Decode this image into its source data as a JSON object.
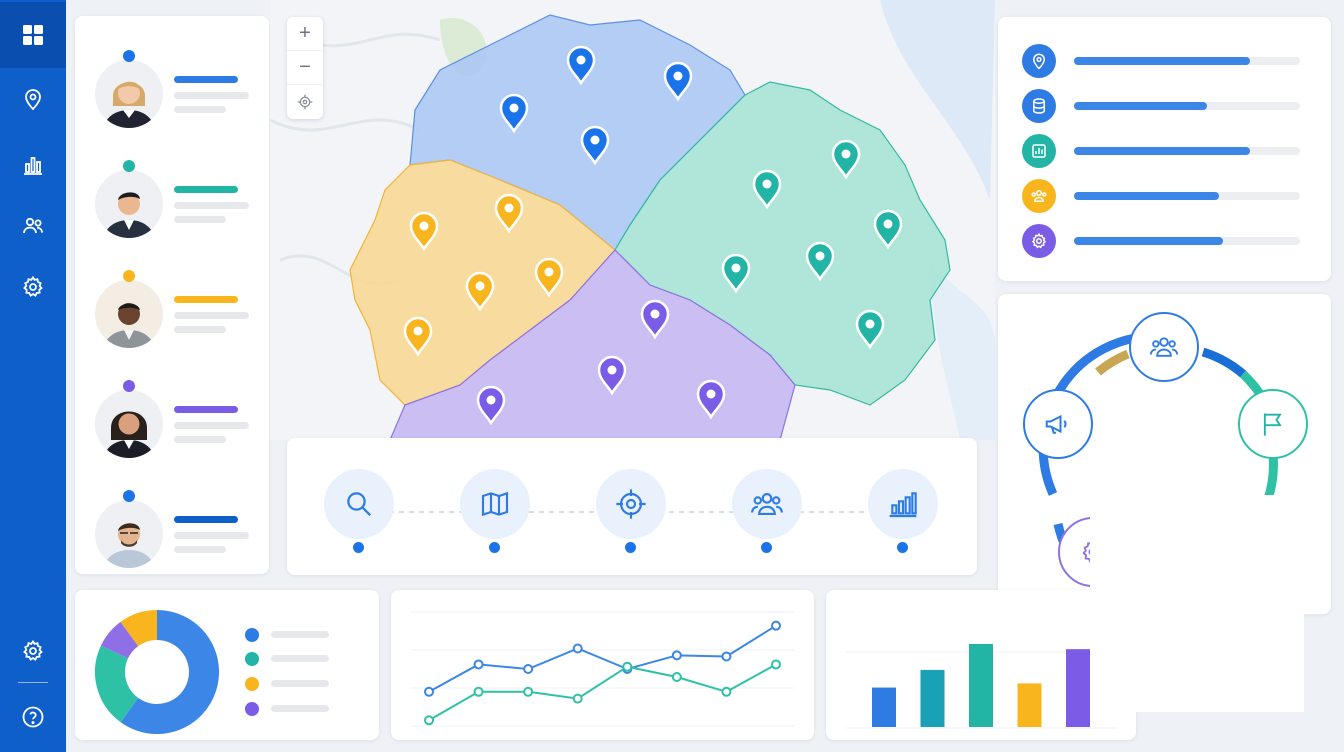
{
  "colors": {
    "sidebar": "#0f5fcb",
    "blue": "#1a73e8",
    "teal": "#22b5a5",
    "amber": "#f9b51e",
    "purple": "#7a5ce6",
    "blue_region": "#a9c6f4",
    "green_region": "#a3e3d3",
    "amber_region": "#f8d894",
    "purple_region": "#c7b8f2"
  },
  "sidebar": {
    "items": [
      {
        "icon": "grid-icon",
        "active": true
      },
      {
        "icon": "location-pin-icon",
        "active": false
      },
      {
        "icon": "bar-chart-icon",
        "active": false
      },
      {
        "icon": "users-icon",
        "active": false
      },
      {
        "icon": "settings-icon",
        "active": false
      }
    ],
    "bottom": [
      {
        "icon": "settings-icon"
      },
      {
        "icon": "help-icon"
      }
    ]
  },
  "team": {
    "members": [
      {
        "status_color": "#1a73e8",
        "accent": "#1a73e8"
      },
      {
        "status_color": "#22b5a5",
        "accent": "#22b5a5"
      },
      {
        "status_color": "#f9b51e",
        "accent": "#f9b51e"
      },
      {
        "status_color": "#7a5ce6",
        "accent": "#7a5ce6"
      },
      {
        "status_color": "#1a73e8",
        "accent": "#1a73e8"
      }
    ]
  },
  "map": {
    "zoom_controls": [
      {
        "label": "+",
        "icon": "zoom-in-icon"
      },
      {
        "label": "−",
        "icon": "zoom-out-icon"
      },
      {
        "label": "",
        "icon": "locate-icon"
      }
    ]
  },
  "tools": [
    {
      "icon": "search-icon"
    },
    {
      "icon": "map-icon"
    },
    {
      "icon": "target-icon"
    },
    {
      "icon": "users-icon"
    },
    {
      "icon": "bar-chart-icon"
    }
  ],
  "stats": [
    {
      "icon": "location-pin-icon",
      "color": "#2e7be4",
      "progress": 0.78
    },
    {
      "icon": "database-icon",
      "color": "#2e7be4",
      "progress": 0.59
    },
    {
      "icon": "bar-chart-icon",
      "color": "#22b5a5",
      "progress": 0.78
    },
    {
      "icon": "users-icon",
      "color": "#f9b51e",
      "progress": 0.64
    },
    {
      "icon": "settings-icon",
      "color": "#7a5ce6",
      "progress": 0.66
    }
  ],
  "workflow": {
    "steps": [
      {
        "icon": "megaphone-icon"
      },
      {
        "icon": "users-icon"
      },
      {
        "icon": "flag-icon"
      },
      {
        "icon": "settings-icon"
      }
    ]
  },
  "chart_data": [
    {
      "type": "pie",
      "slices": [
        {
          "value": 60,
          "color": "#3b86e6"
        },
        {
          "value": 22,
          "color": "#2fc1a6"
        },
        {
          "value": 8,
          "color": "#8e6fe6"
        },
        {
          "value": 10,
          "color": "#f9b51e"
        }
      ],
      "legend_colors": [
        "#2e7be4",
        "#22b5a5",
        "#f9b51e",
        "#7a5ce6"
      ]
    },
    {
      "type": "line",
      "x": [
        1,
        2,
        3,
        4,
        5,
        6,
        7,
        8
      ],
      "series": [
        {
          "color": "#3b86e6",
          "values": [
            3.0,
            5.4,
            5.0,
            6.8,
            5.0,
            6.2,
            6.1,
            8.8
          ]
        },
        {
          "color": "#2fc1a6",
          "values": [
            0.5,
            3.0,
            3.0,
            2.4,
            5.2,
            4.3,
            3.0,
            5.4
          ]
        }
      ],
      "ylim": [
        0,
        10
      ]
    },
    {
      "type": "bar",
      "values": [
        38,
        55,
        80,
        42,
        75
      ],
      "colors": [
        "#2e7be4",
        "#1aa1b8",
        "#22b5a5",
        "#f9b51e",
        "#7a5ce6"
      ],
      "ylim": [
        0,
        100
      ]
    }
  ]
}
